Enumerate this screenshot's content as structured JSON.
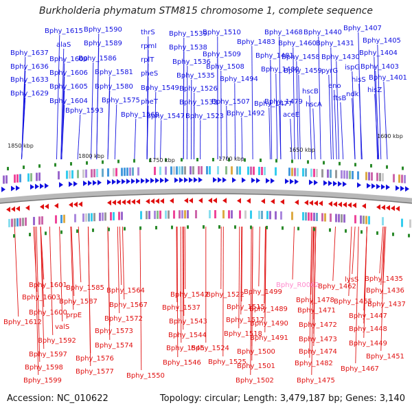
{
  "title": "Burkholderia phymatum STM815 chromosome 1, complete sequence",
  "footer": {
    "accession": "Accession: NC_010622",
    "summary": "Topology: circular; Length: 3,479,187 bp; Genes: 3,140"
  },
  "colors": {
    "forward": "#1010e0",
    "reverse": "#e01010",
    "rna": "#ff88cc",
    "backbone": "#999999",
    "tick_mark": "#2a8a2a"
  },
  "scale_ticks": [
    "1850 kbp",
    "1800 kbp",
    "1750 kbp",
    "1700 kbp",
    "1650 kbp",
    "1600 kbp"
  ],
  "top_labels": [
    "Bphy_1615",
    "Bphy_1590",
    "thrS",
    "Bphy_1539",
    "Bphy_1510",
    "Bphy_1468",
    "Bphy_1440",
    "Bphy_1407",
    "alaS",
    "Bphy_1589",
    "rpmI",
    "Bphy_1538",
    "Bphy_1483",
    "Bphy_1460",
    "Bphy_1431",
    "Bphy_1405",
    "Bphy_1637",
    "Bphy_1609",
    "Bphy_1586",
    "rplT",
    "Bphy_1536",
    "Bphy_1509",
    "Bphy_1481",
    "Bphy_1458",
    "Bphy_1430",
    "Bphy_1404",
    "Bphy_1636",
    "Bphy_1606",
    "Bphy_1581",
    "pheS",
    "Bphy_1535",
    "Bphy_1508",
    "Bphy_1480",
    "Bphy_1459",
    "pyrG",
    "ispG",
    "Bphy_1403",
    "Bphy_1633",
    "Bphy_1605",
    "Bphy_1580",
    "Bphy_1549",
    "Bphy_1526",
    "Bphy_1494",
    "hisS",
    "Bphy_1401",
    "Bphy_1629",
    "Bphy_1604",
    "Bphy_1575",
    "pheT",
    "Bphy_1533",
    "Bphy_1507",
    "Bphy_1479",
    "hscB",
    "eno",
    "hisZ",
    "Bphy_1593",
    "Bphy_1569",
    "Bphy_1547",
    "Bphy_1523",
    "Bphy_1492",
    "Bphy_1477",
    "hscA",
    "ftsB",
    "ndk",
    "aceE"
  ],
  "bottom_labels": [
    "Bphy_1601",
    "Bphy_1585",
    "Bphy_1564",
    "Bphy_R0062",
    "lysS",
    "Bphy_1435",
    "Bphy_1603",
    "Bphy_1587",
    "Bphy_1542",
    "Bphy_1522",
    "Bphy_1499",
    "Bphy_1462",
    "Bphy_1436",
    "Bphy_1600",
    "Bphy_1567",
    "Bphy_1537",
    "Bphy_1515",
    "Bphy_1478",
    "Bphy_1465",
    "Bphy_1437",
    "Bphy_1612",
    "prpE",
    "Bphy_1572",
    "Bphy_1489",
    "Bphy_1471",
    "Bphy_1447",
    "valS",
    "Bphy_1543",
    "Bphy_1517",
    "Bphy_1490",
    "Bphy_1472",
    "Bphy_1448",
    "Bphy_1573",
    "Bphy_1518",
    "Bphy_1491",
    "Bphy_1473",
    "Bphy_1592",
    "Bphy_1544",
    "Bphy_1449",
    "Bphy_1574",
    "Bphy_1524",
    "Bphy_1500",
    "Bphy_1474",
    "Bphy_1597",
    "Bphy_1576",
    "Bphy_1545",
    "Bphy_1451",
    "Bphy_1546",
    "Bphy_1525",
    "Bphy_1501",
    "Bphy_1482",
    "Bphy_1467",
    "Bphy_1598",
    "Bphy_1577",
    "Bphy_1550",
    "Bphy_1502",
    "Bphy_1475",
    "Bphy_1599"
  ]
}
